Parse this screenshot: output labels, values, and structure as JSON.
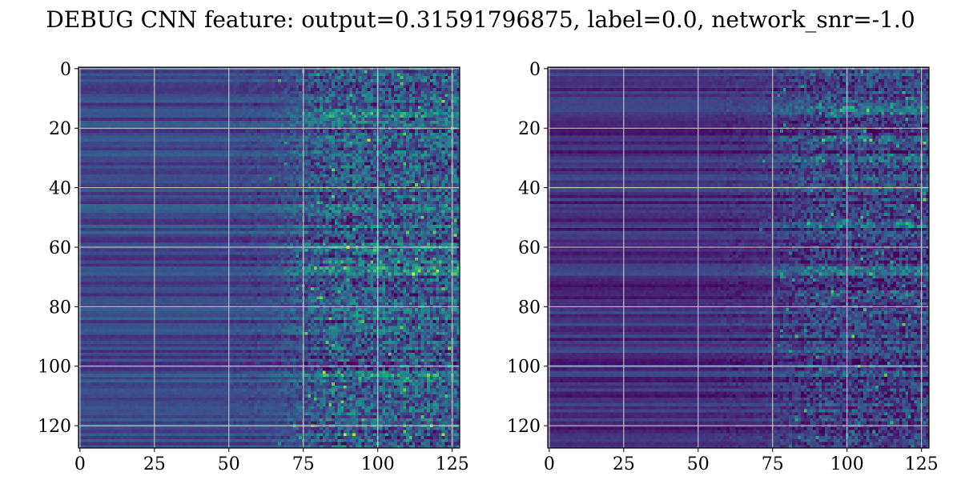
{
  "figure": {
    "title": "DEBUG CNN feature: output=0.31591796875, label=0.0, network_snr=-1.0"
  },
  "chart_data": [
    {
      "type": "heatmap",
      "title": "",
      "xlabel": "",
      "ylabel": "",
      "shape": [
        128,
        128
      ],
      "colormap": "viridis",
      "xlim": [
        -0.5,
        127.5
      ],
      "ylim": [
        127.5,
        -0.5
      ],
      "y_inverted": true,
      "grid": true,
      "x_ticks": [
        0,
        25,
        50,
        75,
        100,
        125
      ],
      "x_tick_labels": [
        "0",
        "25",
        "50",
        "75",
        "100",
        "125"
      ],
      "y_ticks": [
        0,
        20,
        40,
        60,
        80,
        100,
        120
      ],
      "y_tick_labels": [
        "0",
        "20",
        "40",
        "60",
        "80",
        "100",
        "120"
      ],
      "texture": {
        "row_band_mean": 0.22,
        "row_band_spread": 0.1,
        "noise_onset_column": 60,
        "noise_strength": 0.45,
        "hot_row_centers": [
          16,
          60,
          65,
          68,
          103
        ]
      }
    },
    {
      "type": "heatmap",
      "title": "",
      "xlabel": "",
      "ylabel": "",
      "shape": [
        128,
        128
      ],
      "colormap": "viridis",
      "xlim": [
        -0.5,
        127.5
      ],
      "ylim": [
        127.5,
        -0.5
      ],
      "y_inverted": true,
      "grid": true,
      "x_ticks": [
        0,
        25,
        50,
        75,
        100,
        125
      ],
      "x_tick_labels": [
        "0",
        "25",
        "50",
        "75",
        "100",
        "125"
      ],
      "y_ticks": [
        0,
        20,
        40,
        60,
        80,
        100,
        120
      ],
      "y_tick_labels": [
        "0",
        "20",
        "40",
        "60",
        "80",
        "100",
        "120"
      ],
      "texture": {
        "row_band_mean": 0.14,
        "row_band_spread": 0.1,
        "noise_onset_column": 65,
        "noise_strength": 0.35,
        "hot_row_centers": [
          14,
          24,
          30,
          52,
          68,
          76
        ]
      }
    }
  ]
}
